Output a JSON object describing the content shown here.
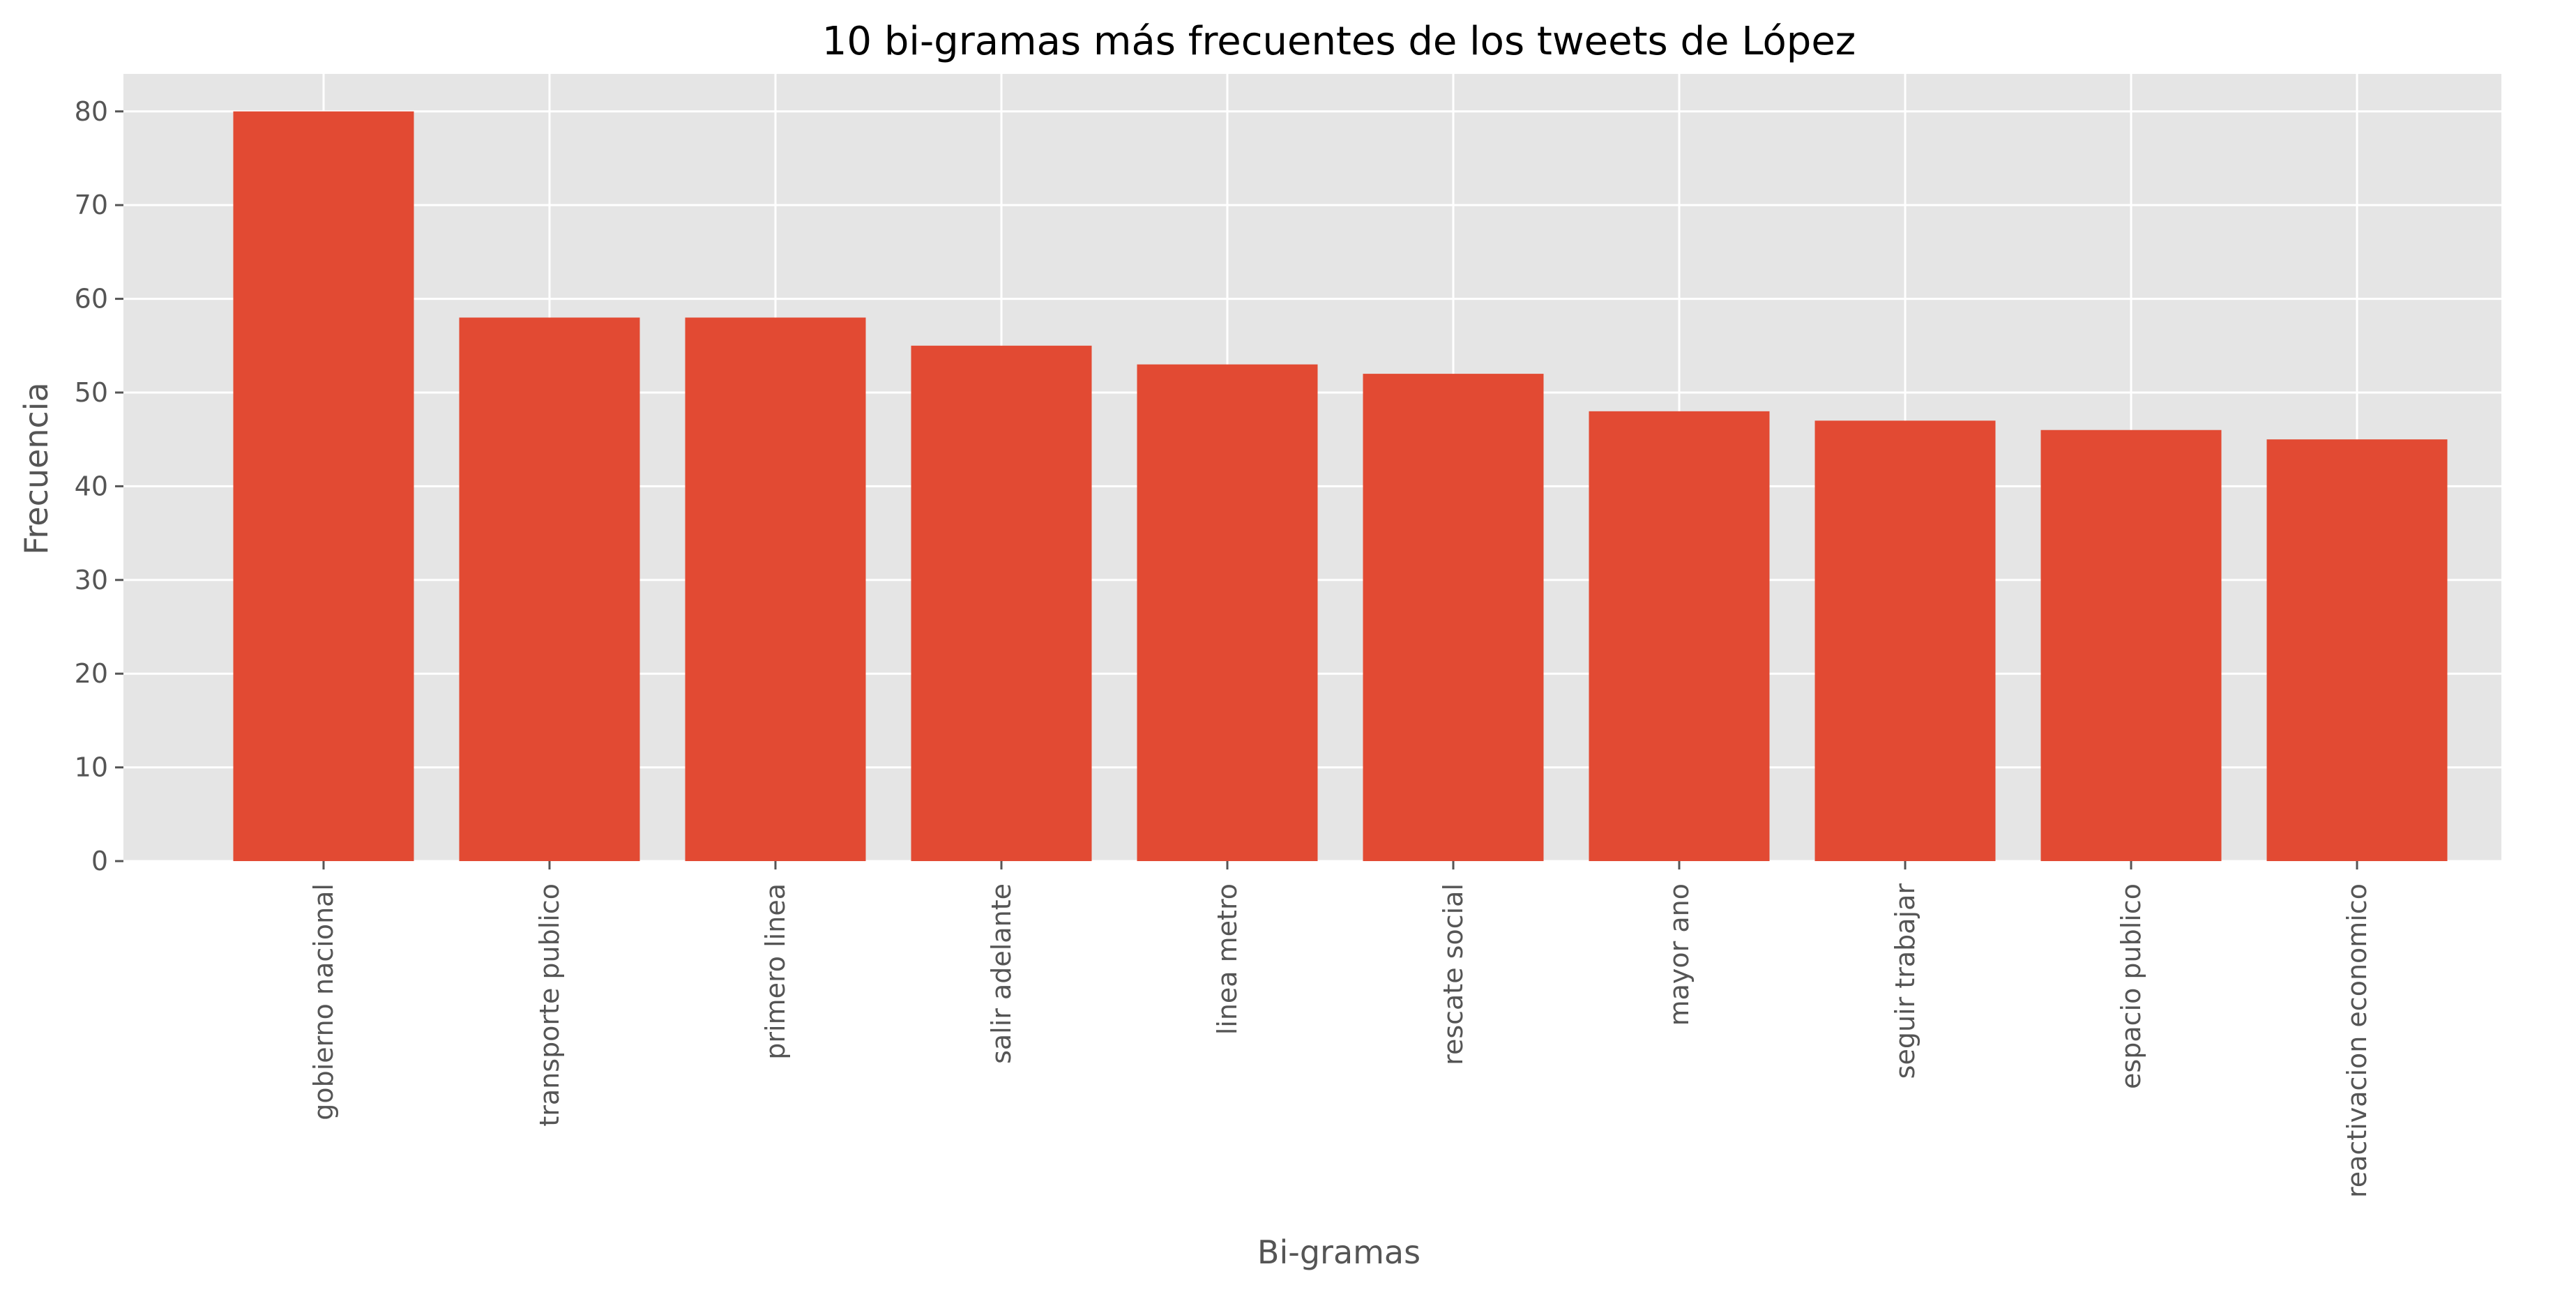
{
  "chart_data": {
    "type": "bar",
    "title": "10 bi-gramas más frecuentes de los tweets de López",
    "xlabel": "Bi-gramas",
    "ylabel": "Frecuencia",
    "categories": [
      "gobierno nacional",
      "transporte publico",
      "primero linea",
      "salir adelante",
      "linea metro",
      "rescate social",
      "mayor ano",
      "seguir trabajar",
      "espacio publico",
      "reactivacion economico"
    ],
    "values": [
      80,
      58,
      58,
      55,
      53,
      52,
      48,
      47,
      46,
      45
    ],
    "ylim": [
      0,
      84
    ],
    "yticks": [
      0,
      10,
      20,
      30,
      40,
      50,
      60,
      70,
      80
    ],
    "grid": true,
    "colors": {
      "bar": "#E24A33",
      "plot_background": "#E5E5E5",
      "grid": "#FFFFFF"
    }
  }
}
